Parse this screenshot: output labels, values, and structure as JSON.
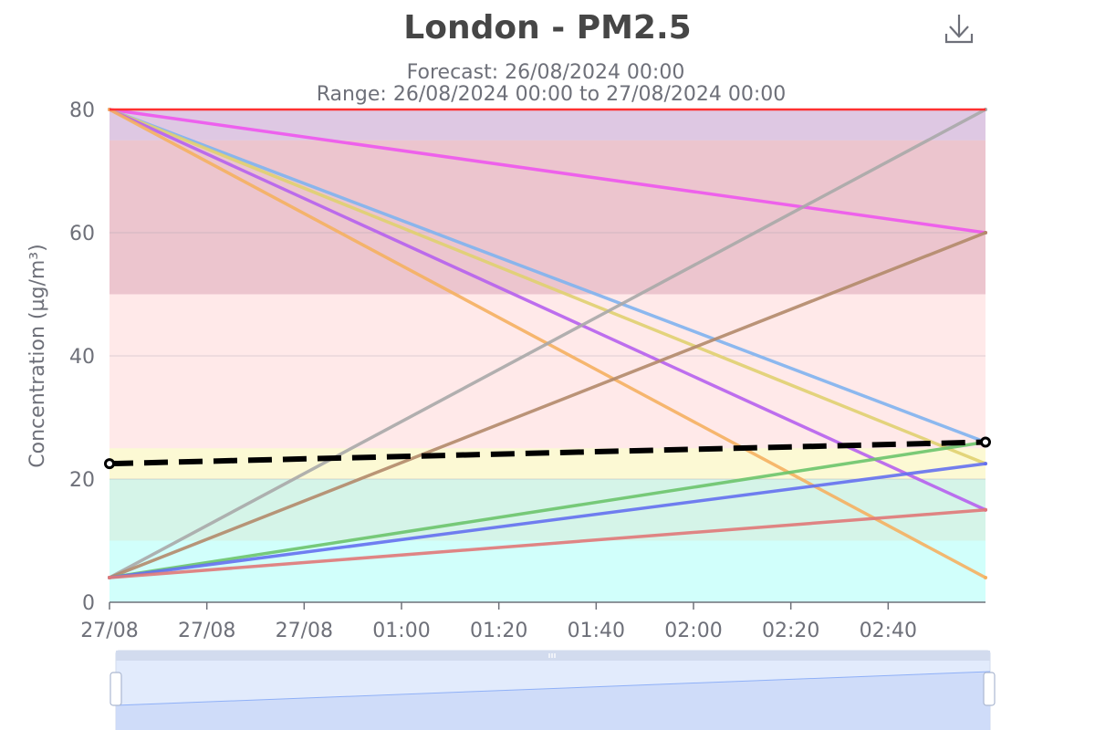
{
  "chart_data": {
    "type": "line",
    "title": "London - PM2.5",
    "subtitle_lines": [
      "Forecast: 26/08/2024 00:00",
      "Range: 26/08/2024 00:00 to 27/08/2024 00:00"
    ],
    "ylabel": "Concentration (µg/m³)",
    "xlabel": "",
    "ylim": [
      0,
      80
    ],
    "y_ticks": [
      0,
      20,
      40,
      60,
      80
    ],
    "x_range": [
      0,
      180
    ],
    "x_ticks": [
      {
        "x": 0,
        "label": "27/08"
      },
      {
        "x": 20,
        "label": "27/08"
      },
      {
        "x": 40,
        "label": "27/08"
      },
      {
        "x": 60,
        "label": "01:00"
      },
      {
        "x": 80,
        "label": "01:20"
      },
      {
        "x": 100,
        "label": "01:40"
      },
      {
        "x": 120,
        "label": "02:00"
      },
      {
        "x": 140,
        "label": "02:20"
      },
      {
        "x": 160,
        "label": "02:40"
      }
    ],
    "grid": true,
    "legend": "none",
    "bands": [
      {
        "from": 0,
        "to": 10,
        "color": "#00FFE8",
        "opacity": 0.18
      },
      {
        "from": 10,
        "to": 20,
        "color": "#2EC98B",
        "opacity": 0.2
      },
      {
        "from": 20,
        "to": 25,
        "color": "#F2E33A",
        "opacity": 0.22
      },
      {
        "from": 25,
        "to": 50,
        "color": "#FF9C9C",
        "opacity": 0.22
      },
      {
        "from": 50,
        "to": 75,
        "color": "#C0405C",
        "opacity": 0.3
      },
      {
        "from": 75,
        "to": 80,
        "color": "#8A3A9A",
        "opacity": 0.28
      }
    ],
    "series": [
      {
        "x": [
          0,
          180
        ],
        "values": [
          80,
          60
        ],
        "color": "#EE55EE"
      },
      {
        "x": [
          0,
          180
        ],
        "values": [
          80,
          26
        ],
        "color": "#7FB2F0"
      },
      {
        "x": [
          0,
          180
        ],
        "values": [
          80,
          22.5
        ],
        "color": "#E0D070"
      },
      {
        "x": [
          0,
          180
        ],
        "values": [
          80,
          15
        ],
        "color": "#B660EE"
      },
      {
        "x": [
          0,
          180
        ],
        "values": [
          80,
          4
        ],
        "color": "#F5B060"
      },
      {
        "x": [
          0,
          180
        ],
        "values": [
          4,
          80
        ],
        "color": "#A8A8A8"
      },
      {
        "x": [
          0,
          180
        ],
        "values": [
          4,
          60
        ],
        "color": "#B38A6A"
      },
      {
        "x": [
          0,
          180
        ],
        "values": [
          4,
          26
        ],
        "color": "#6CC46C"
      },
      {
        "x": [
          0,
          180
        ],
        "values": [
          4,
          22.5
        ],
        "color": "#6470F0"
      },
      {
        "x": [
          0,
          180
        ],
        "values": [
          4,
          15
        ],
        "color": "#E07878"
      },
      {
        "x": [
          0,
          180
        ],
        "values": [
          22.5,
          26
        ],
        "color": "#000000",
        "dashed": true
      }
    ],
    "top_line": {
      "value": 80,
      "color": "#FF3030"
    },
    "toolbox_icon": "download-icon",
    "datazoom": {
      "start": 0,
      "end": 100
    }
  }
}
